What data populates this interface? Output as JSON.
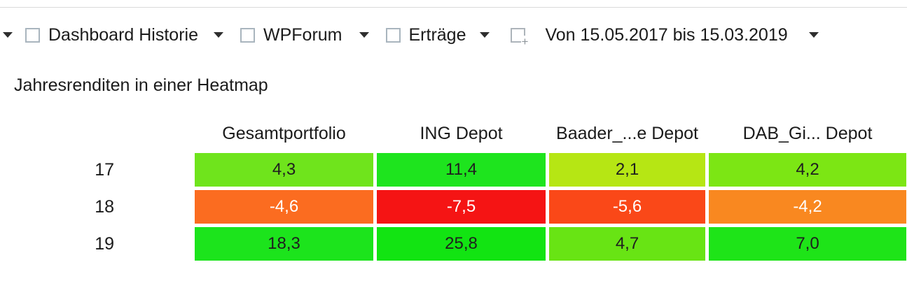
{
  "tabbar": {
    "overflow_icon": "chevron-down",
    "tabs": [
      {
        "label": "Dashboard Historie"
      },
      {
        "label": "WPForum"
      },
      {
        "label": "Erträge"
      }
    ],
    "add_tab_icon": "new-tab-plus",
    "date_tab": {
      "label": "Von 15.05.2017 bis 15.03.2019"
    }
  },
  "widget": {
    "title": "Jahresrenditen in einer Heatmap"
  },
  "chart_data": {
    "type": "heatmap",
    "title": "Jahresrenditen in einer Heatmap",
    "columns": [
      "Gesamtportfolio",
      "ING Depot",
      "Baader_...e Depot",
      "DAB_Gi... Depot"
    ],
    "rows": [
      "17",
      "18",
      "19"
    ],
    "values": [
      [
        4.3,
        11.4,
        2.1,
        4.2
      ],
      [
        -4.6,
        -7.5,
        -5.6,
        -4.2
      ],
      [
        18.3,
        25.8,
        4.7,
        7.0
      ]
    ],
    "display_values": [
      [
        "4,3",
        "11,4",
        "2,1",
        "4,2"
      ],
      [
        "-4,6",
        "-7,5",
        "-5,6",
        "-4,2"
      ],
      [
        "18,3",
        "25,8",
        "4,7",
        "7,0"
      ]
    ],
    "cell_colors": [
      [
        "#6fe41c",
        "#1ee41e",
        "#b6e614",
        "#7ce614"
      ],
      [
        "#fb6c20",
        "#f51414",
        "#fa4818",
        "#f98820"
      ],
      [
        "#1ce41c",
        "#12e412",
        "#68e414",
        "#1ee418"
      ]
    ],
    "positive_text_color": "#1f1f1f",
    "negative_text_color": "#ffffff",
    "legend_position": "none",
    "grid": false
  },
  "colors": {
    "background": "#ffffff",
    "divider": "#d9d9d9",
    "checkbox_border": "#a9b5be",
    "caret": "#2e2e2e",
    "add_icon": "#adb4ba"
  }
}
